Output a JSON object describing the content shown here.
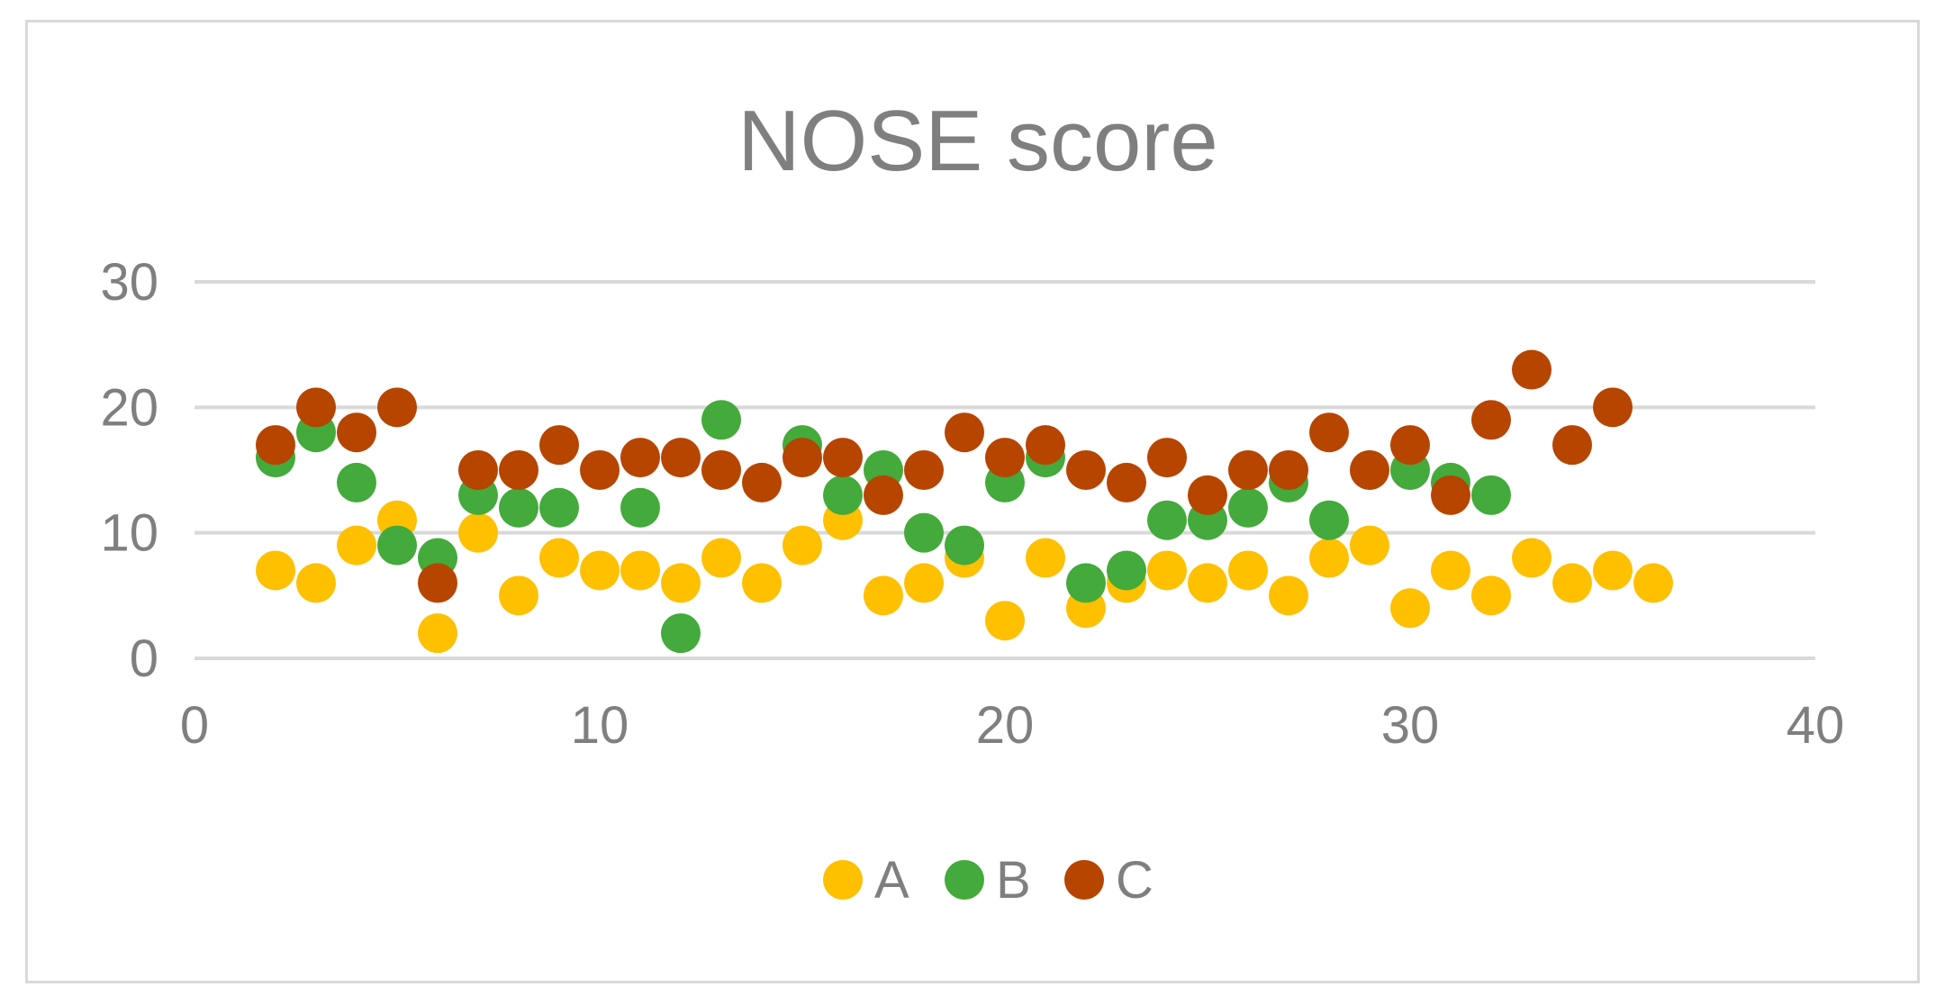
{
  "chart_data": {
    "type": "scatter",
    "title": "NOSE score",
    "xlabel": "",
    "ylabel": "",
    "xlim": [
      0,
      40
    ],
    "ylim": [
      0,
      30
    ],
    "x_ticks": [
      "0",
      "10",
      "20",
      "30",
      "40"
    ],
    "y_ticks": [
      "0",
      "10",
      "20",
      "30"
    ],
    "grid": "horizontal",
    "legend_position": "bottom",
    "series": [
      {
        "name": "A",
        "color": "#FFC000",
        "points": [
          [
            2,
            7
          ],
          [
            3,
            6
          ],
          [
            4,
            9
          ],
          [
            5,
            11
          ],
          [
            6,
            2
          ],
          [
            7,
            10
          ],
          [
            8,
            5
          ],
          [
            9,
            8
          ],
          [
            10,
            7
          ],
          [
            11,
            7
          ],
          [
            12,
            6
          ],
          [
            13,
            8
          ],
          [
            14,
            6
          ],
          [
            15,
            9
          ],
          [
            16,
            11
          ],
          [
            17,
            5
          ],
          [
            18,
            6
          ],
          [
            19,
            8
          ],
          [
            20,
            3
          ],
          [
            21,
            8
          ],
          [
            22,
            4
          ],
          [
            23,
            6
          ],
          [
            24,
            7
          ],
          [
            25,
            6
          ],
          [
            26,
            7
          ],
          [
            27,
            5
          ],
          [
            28,
            8
          ],
          [
            29,
            9
          ],
          [
            30,
            4
          ],
          [
            31,
            7
          ],
          [
            32,
            5
          ],
          [
            33,
            8
          ],
          [
            34,
            6
          ],
          [
            35,
            7
          ],
          [
            36,
            6
          ]
        ]
      },
      {
        "name": "B",
        "color": "#43AA3B",
        "points": [
          [
            2,
            16
          ],
          [
            3,
            18
          ],
          [
            4,
            14
          ],
          [
            5,
            9
          ],
          [
            6,
            8
          ],
          [
            7,
            13
          ],
          [
            8,
            12
          ],
          [
            9,
            12
          ],
          [
            11,
            12
          ],
          [
            12,
            2
          ],
          [
            13,
            19
          ],
          [
            15,
            17
          ],
          [
            16,
            13
          ],
          [
            17,
            15
          ],
          [
            18,
            10
          ],
          [
            19,
            9
          ],
          [
            20,
            14
          ],
          [
            21,
            16
          ],
          [
            22,
            6
          ],
          [
            23,
            7
          ],
          [
            24,
            11
          ],
          [
            25,
            11
          ],
          [
            26,
            12
          ],
          [
            27,
            14
          ],
          [
            28,
            11
          ],
          [
            30,
            15
          ],
          [
            31,
            14
          ],
          [
            32,
            13
          ]
        ]
      },
      {
        "name": "C",
        "color": "#B64500",
        "points": [
          [
            2,
            17
          ],
          [
            3,
            20
          ],
          [
            4,
            18
          ],
          [
            5,
            20
          ],
          [
            6,
            6
          ],
          [
            7,
            15
          ],
          [
            8,
            15
          ],
          [
            9,
            17
          ],
          [
            10,
            15
          ],
          [
            11,
            16
          ],
          [
            12,
            16
          ],
          [
            13,
            15
          ],
          [
            14,
            14
          ],
          [
            15,
            16
          ],
          [
            16,
            16
          ],
          [
            17,
            13
          ],
          [
            18,
            15
          ],
          [
            19,
            18
          ],
          [
            20,
            16
          ],
          [
            21,
            17
          ],
          [
            22,
            15
          ],
          [
            23,
            14
          ],
          [
            24,
            16
          ],
          [
            25,
            13
          ],
          [
            26,
            15
          ],
          [
            27,
            15
          ],
          [
            28,
            18
          ],
          [
            29,
            15
          ],
          [
            30,
            17
          ],
          [
            31,
            13
          ],
          [
            32,
            19
          ],
          [
            33,
            23
          ],
          [
            34,
            17
          ],
          [
            35,
            20
          ]
        ]
      }
    ]
  }
}
